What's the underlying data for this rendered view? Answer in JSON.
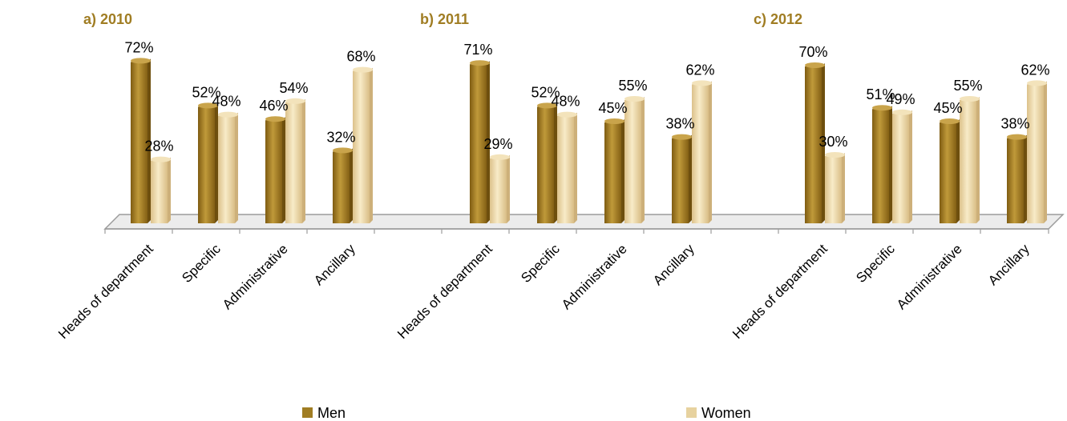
{
  "chart_data": {
    "type": "bar",
    "series": [
      {
        "name": "Men",
        "color": "#a87c1f"
      },
      {
        "name": "Women",
        "color": "#efd9a6"
      }
    ],
    "categories": [
      "Heads of department",
      "Specific",
      "Administrative",
      "Ancillary"
    ],
    "groups": [
      {
        "title": "a) 2010",
        "values": {
          "Men": [
            72,
            52,
            46,
            32
          ],
          "Women": [
            28,
            48,
            54,
            68
          ]
        },
        "labels": {
          "Men": [
            "72%",
            "52%",
            "46%",
            "32%"
          ],
          "Women": [
            "28%",
            "48%",
            "54%",
            "68%"
          ]
        }
      },
      {
        "title": "b) 2011",
        "values": {
          "Men": [
            71,
            52,
            45,
            38
          ],
          "Women": [
            29,
            48,
            55,
            62
          ]
        },
        "labels": {
          "Men": [
            "71%",
            "52%",
            "45%",
            "38%"
          ],
          "Women": [
            "29%",
            "48%",
            "55%",
            "62%"
          ]
        }
      },
      {
        "title": "c) 2012",
        "values": {
          "Men": [
            70,
            51,
            45,
            38
          ],
          "Women": [
            30,
            49,
            55,
            62
          ]
        },
        "labels": {
          "Men": [
            "70%",
            "51%",
            "45%",
            "38%"
          ],
          "Women": [
            "30%",
            "49%",
            "55%",
            "62%"
          ]
        }
      }
    ],
    "ylim": [
      0,
      100
    ],
    "legend": {
      "placement": "bottom",
      "items": [
        "Men",
        "Women"
      ]
    },
    "grid": false
  }
}
